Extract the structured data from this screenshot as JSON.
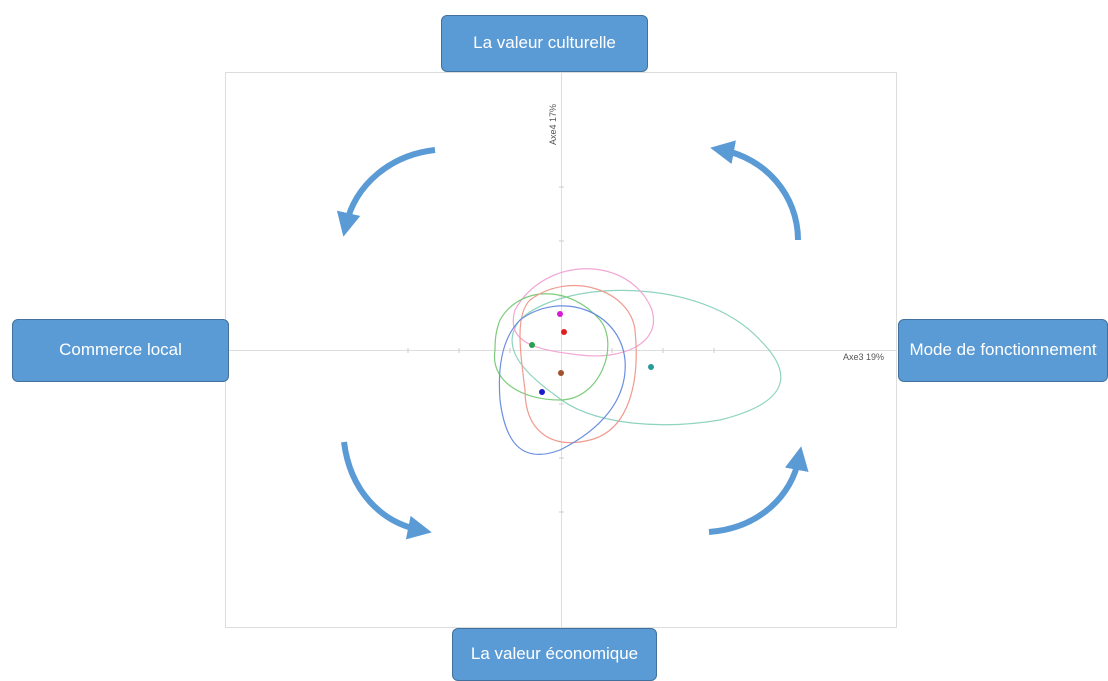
{
  "boxes": {
    "top": "La valeur culturelle",
    "left": "Commerce local",
    "right": "Mode de fonctionnement",
    "bottom": "La valeur économique"
  },
  "axes": {
    "vertical": "Axe4  17%",
    "horizontal": "Axe3  19%"
  }
}
